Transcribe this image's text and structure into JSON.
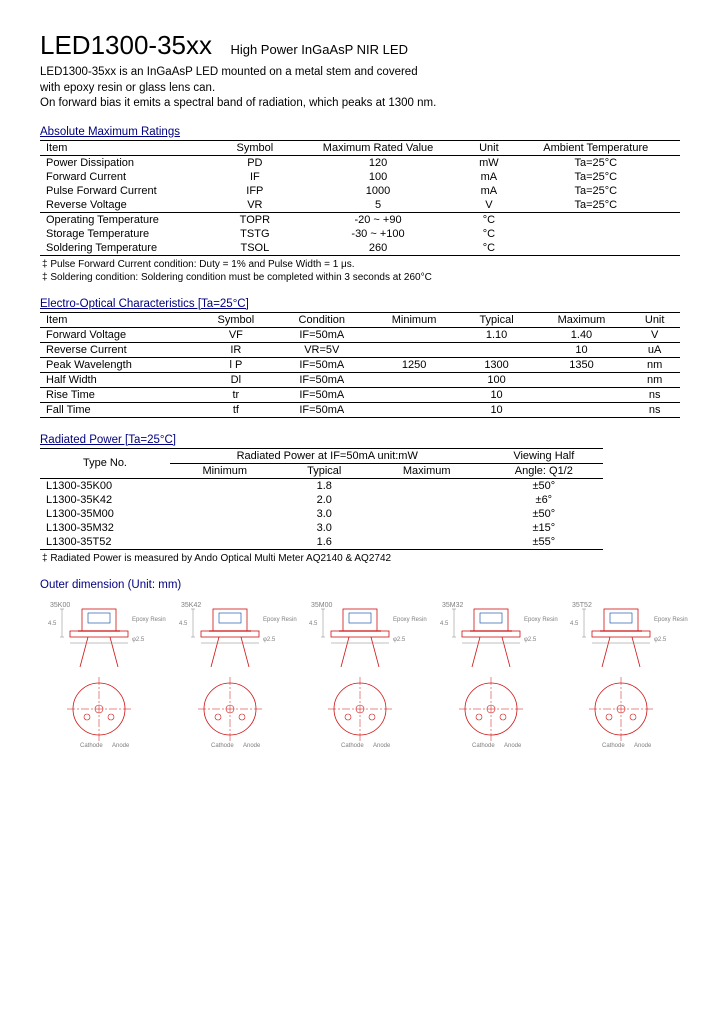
{
  "header": {
    "title": "LED1300-35xx",
    "subtitle": "High Power InGaAsP NIR LED",
    "description_l1": "LED1300-35xx is an InGaAsP LED mounted on a metal stem and covered",
    "description_l2": "with epoxy resin or glass lens can.",
    "description_l3": "On forward bias it emits a spectral band of radiation, which peaks at 1300 nm."
  },
  "abs_max": {
    "heading": "Absolute Maximum Ratings",
    "cols": [
      "Item",
      "Symbol",
      "Maximum Rated Value",
      "Unit",
      "Ambient Temperature"
    ],
    "rows": [
      [
        "Power Dissipation",
        "PD",
        "120",
        "mW",
        "Ta=25°C"
      ],
      [
        "Forward Current",
        "IF",
        "100",
        "mA",
        "Ta=25°C"
      ],
      [
        "Pulse Forward Current",
        "IFP",
        "1000",
        "mA",
        "Ta=25°C"
      ],
      [
        "Reverse Voltage",
        "VR",
        "5",
        "V",
        "Ta=25°C"
      ],
      [
        "Operating Temperature",
        "TOPR",
        "-20 ~ +90",
        "°C",
        ""
      ],
      [
        "Storage Temperature",
        "TSTG",
        "-30 ~ +100",
        "°C",
        ""
      ],
      [
        "Soldering Temperature",
        "TSOL",
        "260",
        "°C",
        ""
      ]
    ],
    "note1": "‡ Pulse Forward Current condition: Duty = 1% and Pulse Width = 1 μs.",
    "note2": "‡ Soldering condition: Soldering condition must be completed within 3 seconds at 260°C"
  },
  "electro": {
    "heading": "Electro-Optical Characteristics [Ta=25°C]",
    "cols": [
      "Item",
      "Symbol",
      "Condition",
      "Minimum",
      "Typical",
      "Maximum",
      "Unit"
    ],
    "rows": [
      [
        "Forward Voltage",
        "VF",
        "IF=50mA",
        "",
        "1.10",
        "1.40",
        "V"
      ],
      [
        "Reverse Current",
        "IR",
        "VR=5V",
        "",
        "",
        "10",
        "uA"
      ],
      [
        "Peak Wavelength",
        "l P",
        "IF=50mA",
        "1250",
        "1300",
        "1350",
        "nm"
      ],
      [
        "Half Width",
        "Dl",
        "IF=50mA",
        "",
        "100",
        "",
        "nm"
      ],
      [
        "Rise Time",
        "tr",
        "IF=50mA",
        "",
        "10",
        "",
        "ns"
      ],
      [
        "Fall Time",
        "tf",
        "IF=50mA",
        "",
        "10",
        "",
        "ns"
      ]
    ]
  },
  "radiated": {
    "heading": "Radiated Power    [Ta=25°C]",
    "head_typeno": "Type No.",
    "head_radpow": "Radiated Power at IF=50mA unit:mW",
    "head_view": "Viewing Half",
    "head_angle": "Angle: Q1/2",
    "sub_cols": [
      "Minimum",
      "Typical",
      "Maximum"
    ],
    "rows": [
      [
        "L1300-35K00",
        "",
        "1.8",
        "",
        "±50°"
      ],
      [
        "L1300-35K42",
        "",
        "2.0",
        "",
        "±6°"
      ],
      [
        "L1300-35M00",
        "",
        "3.0",
        "",
        "±50°"
      ],
      [
        "L1300-35M32",
        "",
        "3.0",
        "",
        "±15°"
      ],
      [
        "L1300-35T52",
        "",
        "1.6",
        "",
        "±55°"
      ]
    ],
    "note": "‡ Radiated Power is measured by Ando Optical Multi Meter AQ2140 & AQ2742"
  },
  "outer": {
    "heading": "Outer dimension (Unit: mm)",
    "labels": [
      "35K00",
      "35K42",
      "35M00",
      "35M32",
      "35T52"
    ],
    "colors": {
      "outline": "#d01010",
      "axis": "#d01010",
      "detail": "#003f9f",
      "text": "#808080"
    }
  }
}
